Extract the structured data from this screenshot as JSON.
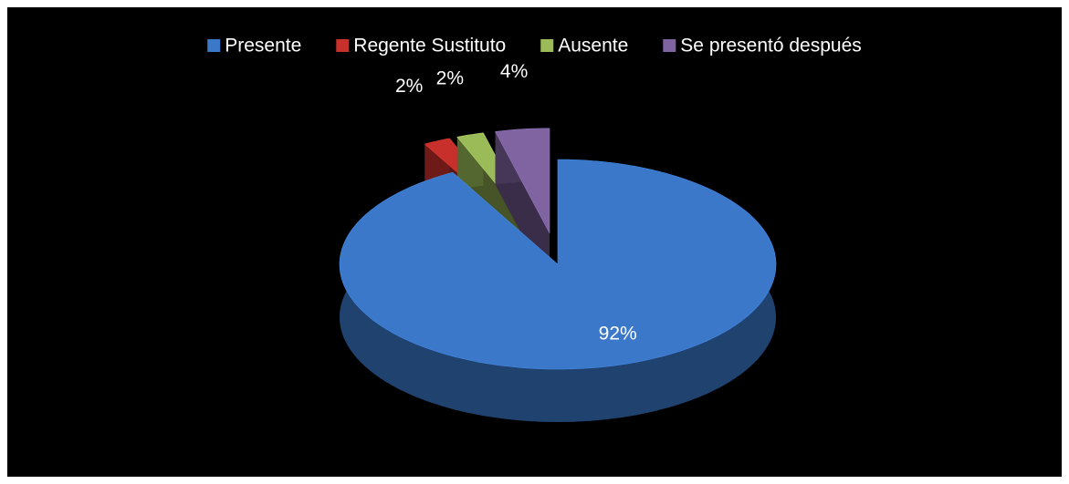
{
  "chart_data": {
    "type": "pie",
    "categories": [
      "Presente",
      "Regente Sustituto",
      "Ausente",
      "Se presentó después"
    ],
    "values": [
      92,
      2,
      2,
      4
    ],
    "value_labels": [
      "92%",
      "2%",
      "2%",
      "4%"
    ],
    "colors": [
      "#3b78c9",
      "#c8302c",
      "#9bbb59",
      "#8064a2"
    ],
    "legend": "top"
  }
}
